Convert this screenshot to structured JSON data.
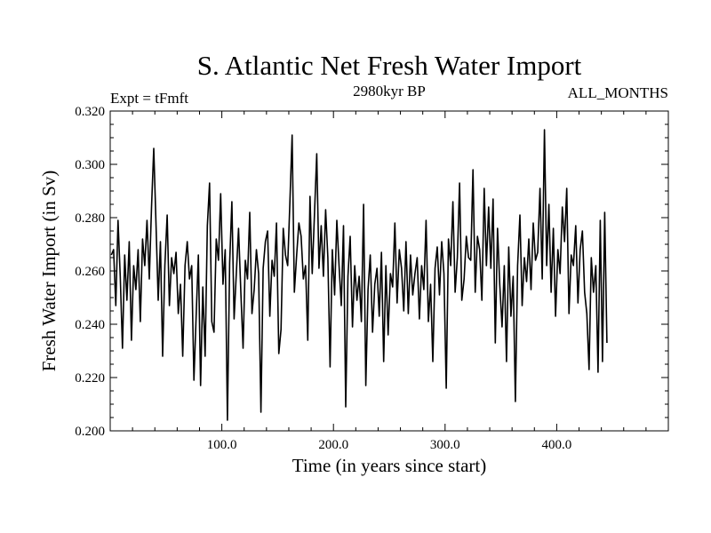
{
  "chart_data": {
    "type": "line",
    "title": "S. Atlantic Net Fresh Water Import",
    "subtitle": "2980kyr BP",
    "left_label": "Expt = tFmft",
    "right_label": "ALL_MONTHS",
    "xlabel": "Time (in years since start)",
    "ylabel": "Fresh Water Import (in Sv)",
    "xlim": [
      0,
      500
    ],
    "ylim": [
      0.2,
      0.32
    ],
    "x_ticks": [
      100,
      200,
      300,
      400
    ],
    "x_tick_labels": [
      "100.0",
      "200.0",
      "300.0",
      "400.0"
    ],
    "y_ticks": [
      0.2,
      0.22,
      0.24,
      0.26,
      0.28,
      0.3,
      0.32
    ],
    "y_tick_labels": [
      "0.200",
      "0.220",
      "0.240",
      "0.260",
      "0.280",
      "0.300",
      "0.320"
    ],
    "series": [
      {
        "name": "Fresh Water Import",
        "x_start": 1,
        "x_step": 2,
        "values": [
          0.266,
          0.268,
          0.247,
          0.279,
          0.258,
          0.231,
          0.266,
          0.249,
          0.271,
          0.234,
          0.262,
          0.253,
          0.268,
          0.241,
          0.272,
          0.262,
          0.279,
          0.257,
          0.284,
          0.306,
          0.278,
          0.249,
          0.271,
          0.228,
          0.262,
          0.281,
          0.247,
          0.265,
          0.259,
          0.267,
          0.244,
          0.255,
          0.228,
          0.262,
          0.271,
          0.257,
          0.262,
          0.219,
          0.243,
          0.266,
          0.217,
          0.254,
          0.228,
          0.277,
          0.293,
          0.241,
          0.237,
          0.272,
          0.264,
          0.289,
          0.255,
          0.268,
          0.204,
          0.263,
          0.286,
          0.242,
          0.259,
          0.276,
          0.252,
          0.231,
          0.264,
          0.257,
          0.282,
          0.244,
          0.253,
          0.268,
          0.259,
          0.207,
          0.261,
          0.271,
          0.275,
          0.243,
          0.264,
          0.258,
          0.278,
          0.229,
          0.238,
          0.276,
          0.266,
          0.262,
          0.286,
          0.311,
          0.252,
          0.266,
          0.278,
          0.273,
          0.257,
          0.262,
          0.234,
          0.288,
          0.259,
          0.281,
          0.304,
          0.261,
          0.277,
          0.258,
          0.283,
          0.265,
          0.224,
          0.268,
          0.251,
          0.279,
          0.262,
          0.247,
          0.277,
          0.209,
          0.258,
          0.273,
          0.239,
          0.262,
          0.249,
          0.258,
          0.241,
          0.285,
          0.217,
          0.253,
          0.266,
          0.237,
          0.255,
          0.261,
          0.243,
          0.267,
          0.226,
          0.262,
          0.236,
          0.259,
          0.254,
          0.278,
          0.248,
          0.268,
          0.261,
          0.245,
          0.271,
          0.244,
          0.266,
          0.251,
          0.259,
          0.265,
          0.242,
          0.262,
          0.253,
          0.279,
          0.241,
          0.255,
          0.226,
          0.261,
          0.269,
          0.251,
          0.271,
          0.259,
          0.216,
          0.272,
          0.262,
          0.286,
          0.252,
          0.265,
          0.293,
          0.249,
          0.257,
          0.273,
          0.265,
          0.264,
          0.298,
          0.252,
          0.273,
          0.268,
          0.249,
          0.291,
          0.262,
          0.284,
          0.261,
          0.287,
          0.233,
          0.276,
          0.255,
          0.239,
          0.262,
          0.226,
          0.269,
          0.243,
          0.258,
          0.211,
          0.262,
          0.281,
          0.247,
          0.265,
          0.256,
          0.272,
          0.253,
          0.278,
          0.264,
          0.267,
          0.291,
          0.257,
          0.313,
          0.262,
          0.285,
          0.252,
          0.276,
          0.243,
          0.268,
          0.259,
          0.284,
          0.271,
          0.291,
          0.244,
          0.266,
          0.262,
          0.277,
          0.248,
          0.268,
          0.275,
          0.252,
          0.244,
          0.223,
          0.265,
          0.252,
          0.262,
          0.222,
          0.279,
          0.226,
          0.282,
          0.233
        ]
      }
    ]
  }
}
